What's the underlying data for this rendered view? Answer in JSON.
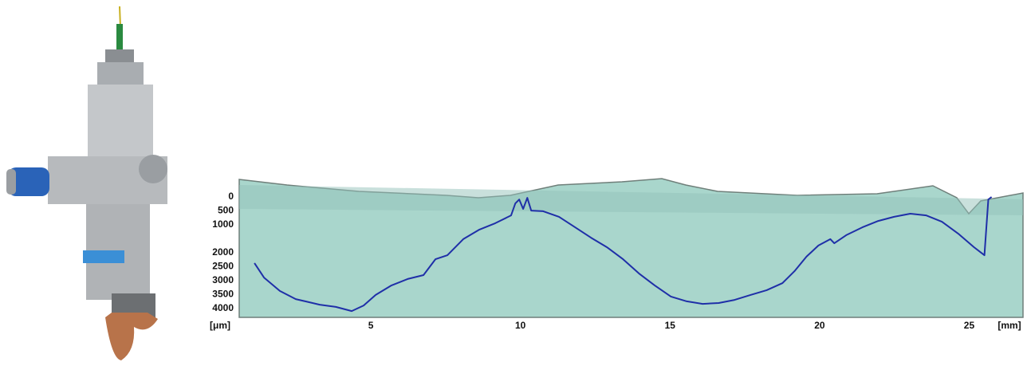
{
  "chart_data": {
    "type": "line",
    "x_label": "[mm]",
    "y_label": "[μm]",
    "x": [
      1.11,
      1.43,
      1.96,
      2.49,
      3.29,
      3.83,
      4.36,
      4.76,
      5.16,
      5.69,
      6.23,
      6.76,
      7.16,
      7.56,
      8.09,
      8.63,
      9.16,
      9.69,
      9.83,
      9.96,
      10.09,
      10.23,
      10.36,
      10.76,
      11.29,
      11.83,
      12.36,
      12.89,
      13.43,
      13.96,
      14.49,
      15.03,
      15.56,
      16.09,
      16.63,
      17.16,
      17.69,
      18.23,
      18.76,
      19.16,
      19.56,
      19.96,
      20.36,
      20.49,
      20.89,
      21.43,
      21.96,
      22.49,
      23.03,
      23.56,
      24.09,
      24.63,
      25.16,
      25.51,
      25.64,
      25.75
    ],
    "series": [
      {
        "color": "#1f2fa8",
        "values": [
          2370,
          2890,
          3370,
          3660,
          3860,
          3940,
          4090,
          3890,
          3510,
          3170,
          2940,
          2800,
          2230,
          2090,
          1510,
          1170,
          940,
          660,
          230,
          90,
          430,
          30,
          490,
          510,
          710,
          1090,
          1460,
          1800,
          2230,
          2740,
          3170,
          3570,
          3740,
          3830,
          3800,
          3690,
          3510,
          3340,
          3090,
          2660,
          2140,
          1740,
          1510,
          1660,
          1370,
          1090,
          860,
          710,
          600,
          660,
          890,
          1310,
          1800,
          2090,
          90,
          0
        ]
      }
    ],
    "xlim": [
      0.6,
      26.8
    ],
    "xticks": [
      5,
      10,
      15,
      20,
      25
    ],
    "ylim": [
      4300,
      -600
    ],
    "yticks": [
      0,
      500,
      1000,
      2000,
      2500,
      3000,
      3500,
      4000
    ],
    "grid": false
  }
}
